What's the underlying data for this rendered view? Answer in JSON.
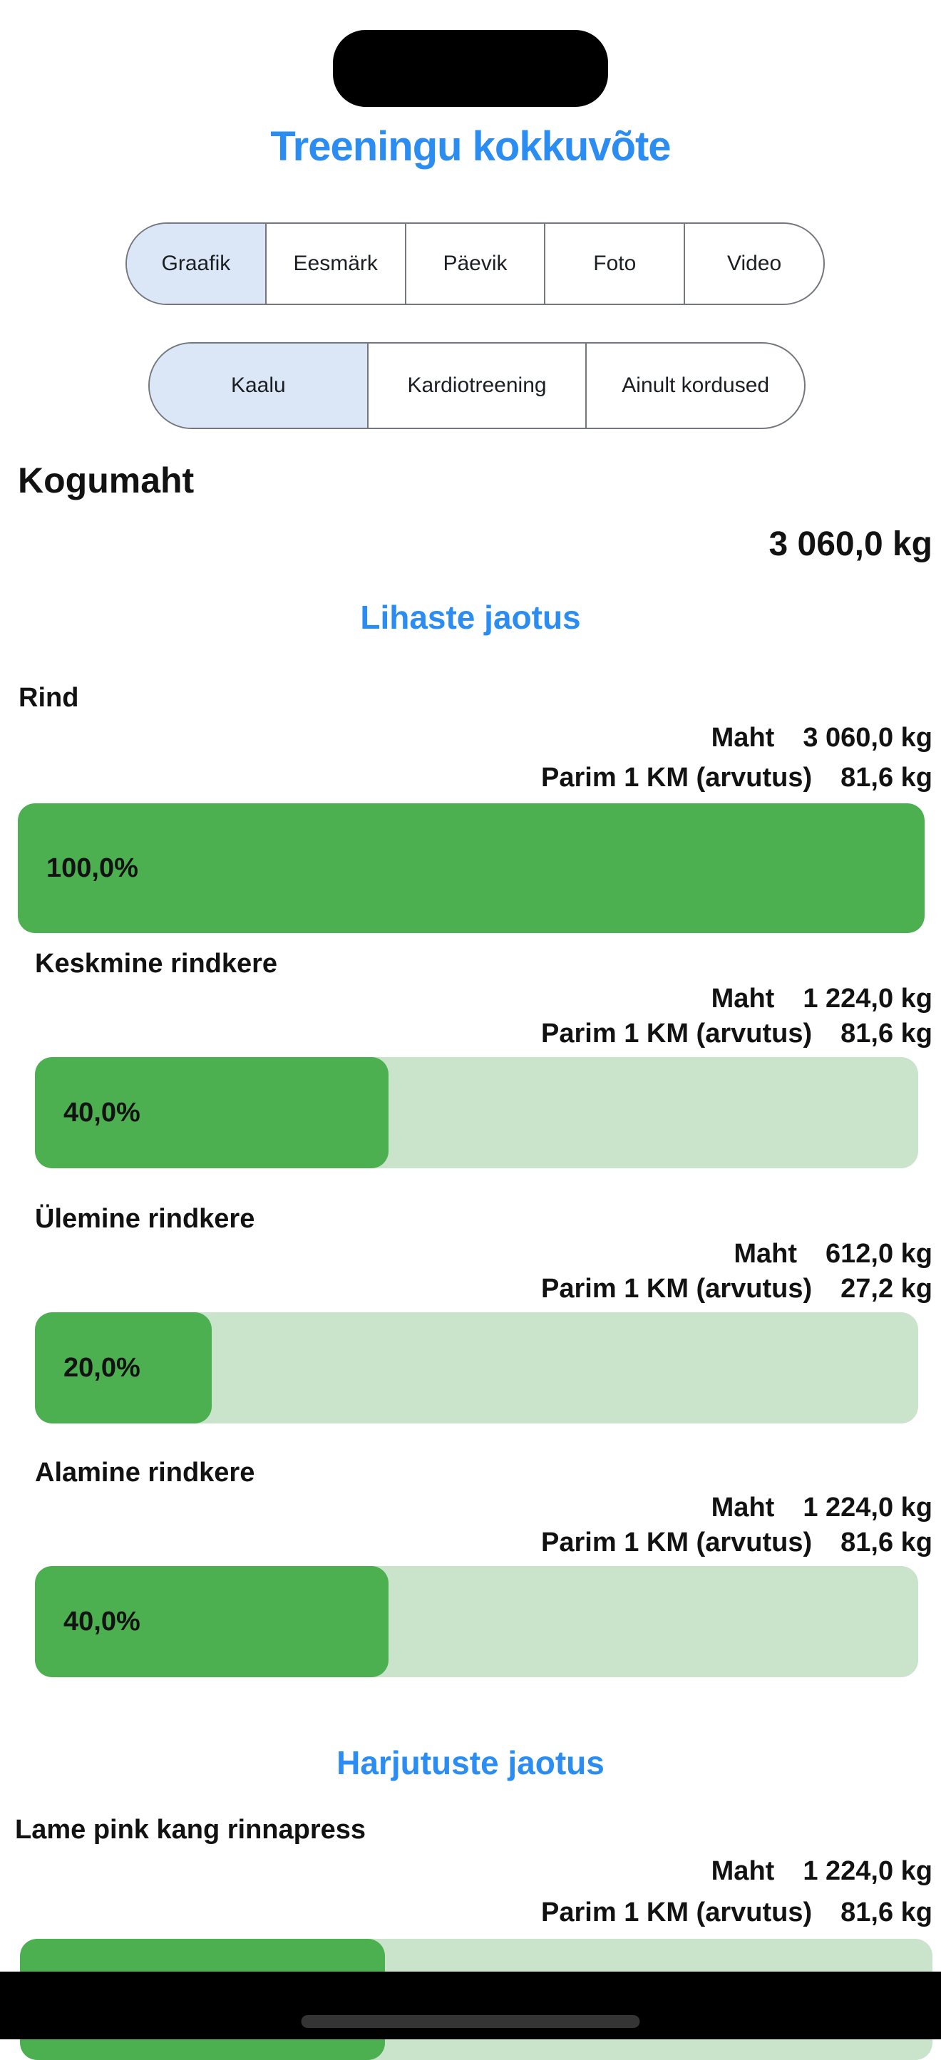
{
  "header": {
    "title": "Treeningu kokkuvõte"
  },
  "tabs_primary": {
    "items": [
      {
        "label": "Graafik",
        "selected": true
      },
      {
        "label": "Eesmärk",
        "selected": false
      },
      {
        "label": "Päevik",
        "selected": false
      },
      {
        "label": "Foto",
        "selected": false
      },
      {
        "label": "Video",
        "selected": false
      }
    ]
  },
  "tabs_secondary": {
    "items": [
      {
        "label": "Kaalu",
        "selected": true
      },
      {
        "label": "Kardiotreening",
        "selected": false
      },
      {
        "label": "Ainult kordused",
        "selected": false
      }
    ]
  },
  "summary": {
    "label": "Kogumaht",
    "value": "3 060,0 kg"
  },
  "labels": {
    "maht": "Maht",
    "parim": "Parim 1 KM (arvutus)"
  },
  "muscles": {
    "heading": "Lihaste jaotus",
    "items": [
      {
        "name": "Rind",
        "maht": "3 060,0 kg",
        "parim": "81,6 kg",
        "percent": "100,0%",
        "fill": "100%"
      },
      {
        "name": "Keskmine rindkere",
        "maht": "1 224,0 kg",
        "parim": "81,6 kg",
        "percent": "40,0%",
        "fill": "40%"
      },
      {
        "name": "Ülemine rindkere",
        "maht": "612,0 kg",
        "parim": "27,2 kg",
        "percent": "20,0%",
        "fill": "20%"
      },
      {
        "name": "Alamine rindkere",
        "maht": "1 224,0 kg",
        "parim": "81,6 kg",
        "percent": "40,0%",
        "fill": "40%"
      }
    ]
  },
  "exercises": {
    "heading": "Harjutuste jaotus",
    "items": [
      {
        "name": "Lame pink kang rinnapress",
        "maht": "1 224,0 kg",
        "parim": "81,6 kg",
        "percent": "40,0%",
        "fill": "40%"
      }
    ]
  },
  "colors": {
    "accent-blue": "#2b8df2",
    "bar-fill-green": "#4cb050",
    "bar-track-green": "#c9e4ca",
    "selected-tab-blue": "#dbe7f7",
    "tab-border-gray": "#74787e",
    "text-dark": "#121212"
  }
}
